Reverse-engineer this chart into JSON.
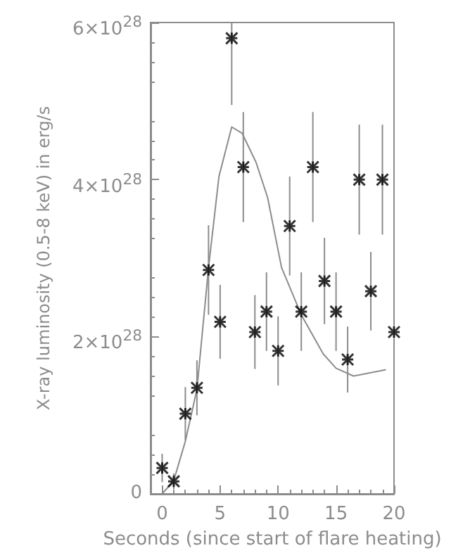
{
  "chart_data": {
    "type": "scatter",
    "xlabel": "Seconds (since start of flare heating)",
    "ylabel": "X-ray luminosity (0.5-8 keV) in erg/s",
    "xlim": [
      -1,
      20
    ],
    "xticks": [
      0,
      5,
      10,
      15,
      20
    ],
    "ylim": [
      0,
      6e+28
    ],
    "yticks": [
      {
        "value": 0,
        "label": "0"
      },
      {
        "value": 2e+28,
        "label": "2×10$^{28}$"
      },
      {
        "value": 4e+28,
        "label": "4×10$^{28}$"
      },
      {
        "value": 6e+28,
        "label": "6×10$^{28}$"
      }
    ],
    "marker": "cross",
    "grid": false,
    "series": [
      {
        "type": "scatter",
        "color": "#000000",
        "x": [
          0,
          1,
          2,
          3,
          4,
          5,
          6,
          7,
          8,
          9,
          10,
          11,
          12,
          13,
          14,
          15,
          16,
          17,
          18,
          19,
          20
        ],
        "values": [
          3.3e+27,
          1.6e+27,
          1.02e+28,
          1.35e+28,
          2.85e+28,
          2.19e+28,
          5.8e+28,
          4.16e+28,
          2.06e+28,
          2.32e+28,
          1.82e+28,
          3.41e+28,
          2.32e+28,
          4.16e+28,
          2.71e+28,
          2.32e+28,
          1.71e+28,
          4e+28,
          2.58e+28,
          4e+28,
          2.06e+28
        ],
        "errors": [
          1.8e+27,
          1e+27,
          3.4e+27,
          3.5e+27,
          5.7e+27,
          4.7e+27,
          8.5e+27,
          7e+27,
          4.7e+27,
          5e+27,
          4.4e+27,
          6.3e+27,
          5e+27,
          7e+27,
          5.5e+27,
          5e+27,
          4.2e+27,
          7e+27,
          5e+27,
          7e+27,
          4.7e+27
        ]
      },
      {
        "type": "line",
        "color": "#8c8c8c",
        "marker": "none",
        "x": [
          0,
          1,
          2,
          3,
          4,
          4.9,
          6,
          6.9,
          8.1,
          9.1,
          10.3,
          12,
          13.9,
          15,
          16.5,
          19.3
        ],
        "values": [
          0,
          1.7e+27,
          6.7e+27,
          1.33e+28,
          2.88e+28,
          4.04e+28,
          4.67e+28,
          4.59e+28,
          4.22e+28,
          3.77e+28,
          2.88e+28,
          2.28e+28,
          1.78e+28,
          1.6e+28,
          1.5e+28,
          1.58e+28
        ]
      }
    ]
  }
}
